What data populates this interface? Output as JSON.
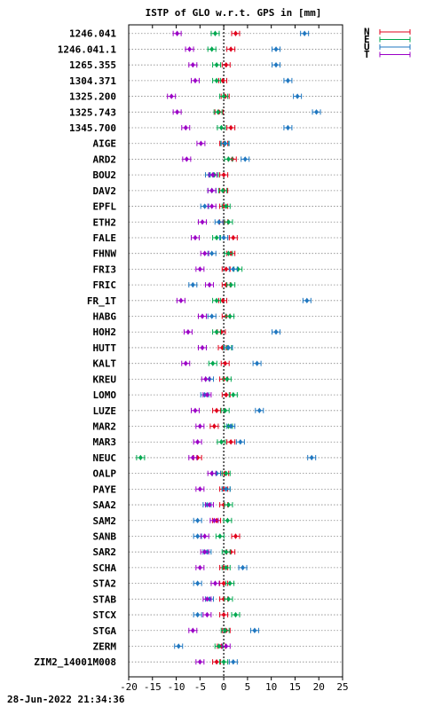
{
  "footer": {
    "timestamp": "28-Jun-2022 21:34:36"
  },
  "chart_data": {
    "type": "scatter",
    "title": "ISTP of GLO w.r.t. GPS in [mm]",
    "xlim": [
      -20,
      25
    ],
    "xticks": [
      "-20",
      "-15",
      "-10",
      "-5",
      "0",
      "5",
      "10",
      "15",
      "20",
      "25"
    ],
    "grid": "horizontal dotted lines per station",
    "zero_line": "vertical dotted at 0",
    "legend": {
      "placement": "top-right, outside plot",
      "entries": [
        {
          "label": "N",
          "color": "#e0001b"
        },
        {
          "label": "E",
          "color": "#00a84f"
        },
        {
          "label": "U",
          "color": "#1f77c0"
        },
        {
          "label": "T",
          "color": "#9b00c6"
        }
      ]
    },
    "series_order": [
      "N",
      "E",
      "U",
      "T"
    ],
    "stations": [
      {
        "name": "1246.041",
        "N": 2.5,
        "E": -1.8,
        "U": 17.0,
        "T": -9.8
      },
      {
        "name": "1246.041.1",
        "N": 1.5,
        "E": -2.5,
        "U": 11.0,
        "T": -7.2
      },
      {
        "name": "1265.355",
        "N": 0.5,
        "E": -1.5,
        "U": 11.0,
        "T": -6.5
      },
      {
        "name": "1304.371",
        "N": -0.2,
        "E": -1.5,
        "U": 13.5,
        "T": -6.0
      },
      {
        "name": "1325.200",
        "N": 0.3,
        "E": 0.0,
        "U": 15.5,
        "T": -11.0
      },
      {
        "name": "1325.743",
        "N": -1.0,
        "E": -1.2,
        "U": 19.5,
        "T": -9.8
      },
      {
        "name": "1345.700",
        "N": 1.5,
        "E": -0.5,
        "U": 13.5,
        "T": -8.0
      },
      {
        "name": "AIGE",
        "N": 0.0,
        "E": 0.2,
        "U": 0.3,
        "T": -4.8
      },
      {
        "name": "ARD2",
        "N": 1.8,
        "E": 1.0,
        "U": 4.5,
        "T": -7.8
      },
      {
        "name": "BOU2",
        "N": 0.0,
        "E": -2.0,
        "U": -3.0,
        "T": -2.3
      },
      {
        "name": "DAV2",
        "N": 0.0,
        "E": -0.2,
        "U": -2.5,
        "T": -2.5
      },
      {
        "name": "EPFL",
        "N": 0.0,
        "E": 0.5,
        "U": -4.0,
        "T": -2.5
      },
      {
        "name": "ETH2",
        "N": 0.0,
        "E": 1.0,
        "U": -1.0,
        "T": -4.5
      },
      {
        "name": "FALE",
        "N": 2.0,
        "E": -1.5,
        "U": 0.0,
        "T": -6.0
      },
      {
        "name": "FHNW",
        "N": 1.5,
        "E": 1.0,
        "U": -2.5,
        "T": -4.0
      },
      {
        "name": "FRI3",
        "N": 0.5,
        "E": 3.0,
        "U": 2.0,
        "T": -5.0
      },
      {
        "name": "FRIC",
        "N": 0.5,
        "E": 1.5,
        "U": -6.5,
        "T": -3.0
      },
      {
        "name": "FR_1T",
        "N": -0.2,
        "E": -1.5,
        "U": 17.5,
        "T": -9.0
      },
      {
        "name": "HABG",
        "N": 0.5,
        "E": 1.3,
        "U": -2.5,
        "T": -4.5
      },
      {
        "name": "HOH2",
        "N": -0.5,
        "E": -1.5,
        "U": 11.0,
        "T": -7.5
      },
      {
        "name": "HUTT",
        "N": -0.3,
        "E": 0.8,
        "U": 1.0,
        "T": -4.5
      },
      {
        "name": "KALT",
        "N": 0.3,
        "E": -2.3,
        "U": 7.0,
        "T": -8.0
      },
      {
        "name": "KREU",
        "N": 0.0,
        "E": 0.7,
        "U": -3.0,
        "T": -3.8
      },
      {
        "name": "LOMO",
        "N": 0.5,
        "E": 2.0,
        "U": -4.0,
        "T": -3.5
      },
      {
        "name": "LUZE",
        "N": -1.5,
        "E": 0.3,
        "U": 7.5,
        "T": -6.0
      },
      {
        "name": "MAR2",
        "N": -2.0,
        "E": 1.0,
        "U": 1.5,
        "T": -5.0
      },
      {
        "name": "MAR3",
        "N": 1.5,
        "E": -0.5,
        "U": 3.5,
        "T": -5.5
      },
      {
        "name": "NEUC",
        "N": -5.5,
        "E": -17.5,
        "U": 18.5,
        "T": -6.5
      },
      {
        "name": "OALP",
        "N": 0.2,
        "E": 0.5,
        "U": -1.5,
        "T": -2.5
      },
      {
        "name": "PAYE",
        "N": 0.0,
        "E": 0.5,
        "U": 0.5,
        "T": -5.0
      },
      {
        "name": "SAA2",
        "N": 0.0,
        "E": 1.0,
        "U": -3.5,
        "T": -3.0
      },
      {
        "name": "SAM2",
        "N": -1.5,
        "E": 0.8,
        "U": -5.5,
        "T": -2.0
      },
      {
        "name": "SANB",
        "N": 2.5,
        "E": -0.8,
        "U": -5.5,
        "T": -4.0
      },
      {
        "name": "SAR2",
        "N": 1.5,
        "E": 0.5,
        "U": -3.5,
        "T": -4.0
      },
      {
        "name": "SCHA",
        "N": 0.0,
        "E": 0.5,
        "U": 4.0,
        "T": -5.0
      },
      {
        "name": "STA2",
        "N": 0.0,
        "E": 1.3,
        "U": -5.5,
        "T": -1.8
      },
      {
        "name": "STAB",
        "N": 0.0,
        "E": 1.0,
        "U": -3.0,
        "T": -3.5
      },
      {
        "name": "STCX",
        "N": 0.0,
        "E": 2.5,
        "U": -5.5,
        "T": -3.5
      },
      {
        "name": "STGA",
        "N": 0.5,
        "E": 0.3,
        "U": 6.5,
        "T": -6.5
      },
      {
        "name": "ZERM",
        "N": -0.5,
        "E": -1.0,
        "U": -9.5,
        "T": 0.5
      },
      {
        "name": "ZIM2_14001M008",
        "N": -1.5,
        "E": 0.0,
        "U": 2.0,
        "T": -5.0
      }
    ]
  }
}
